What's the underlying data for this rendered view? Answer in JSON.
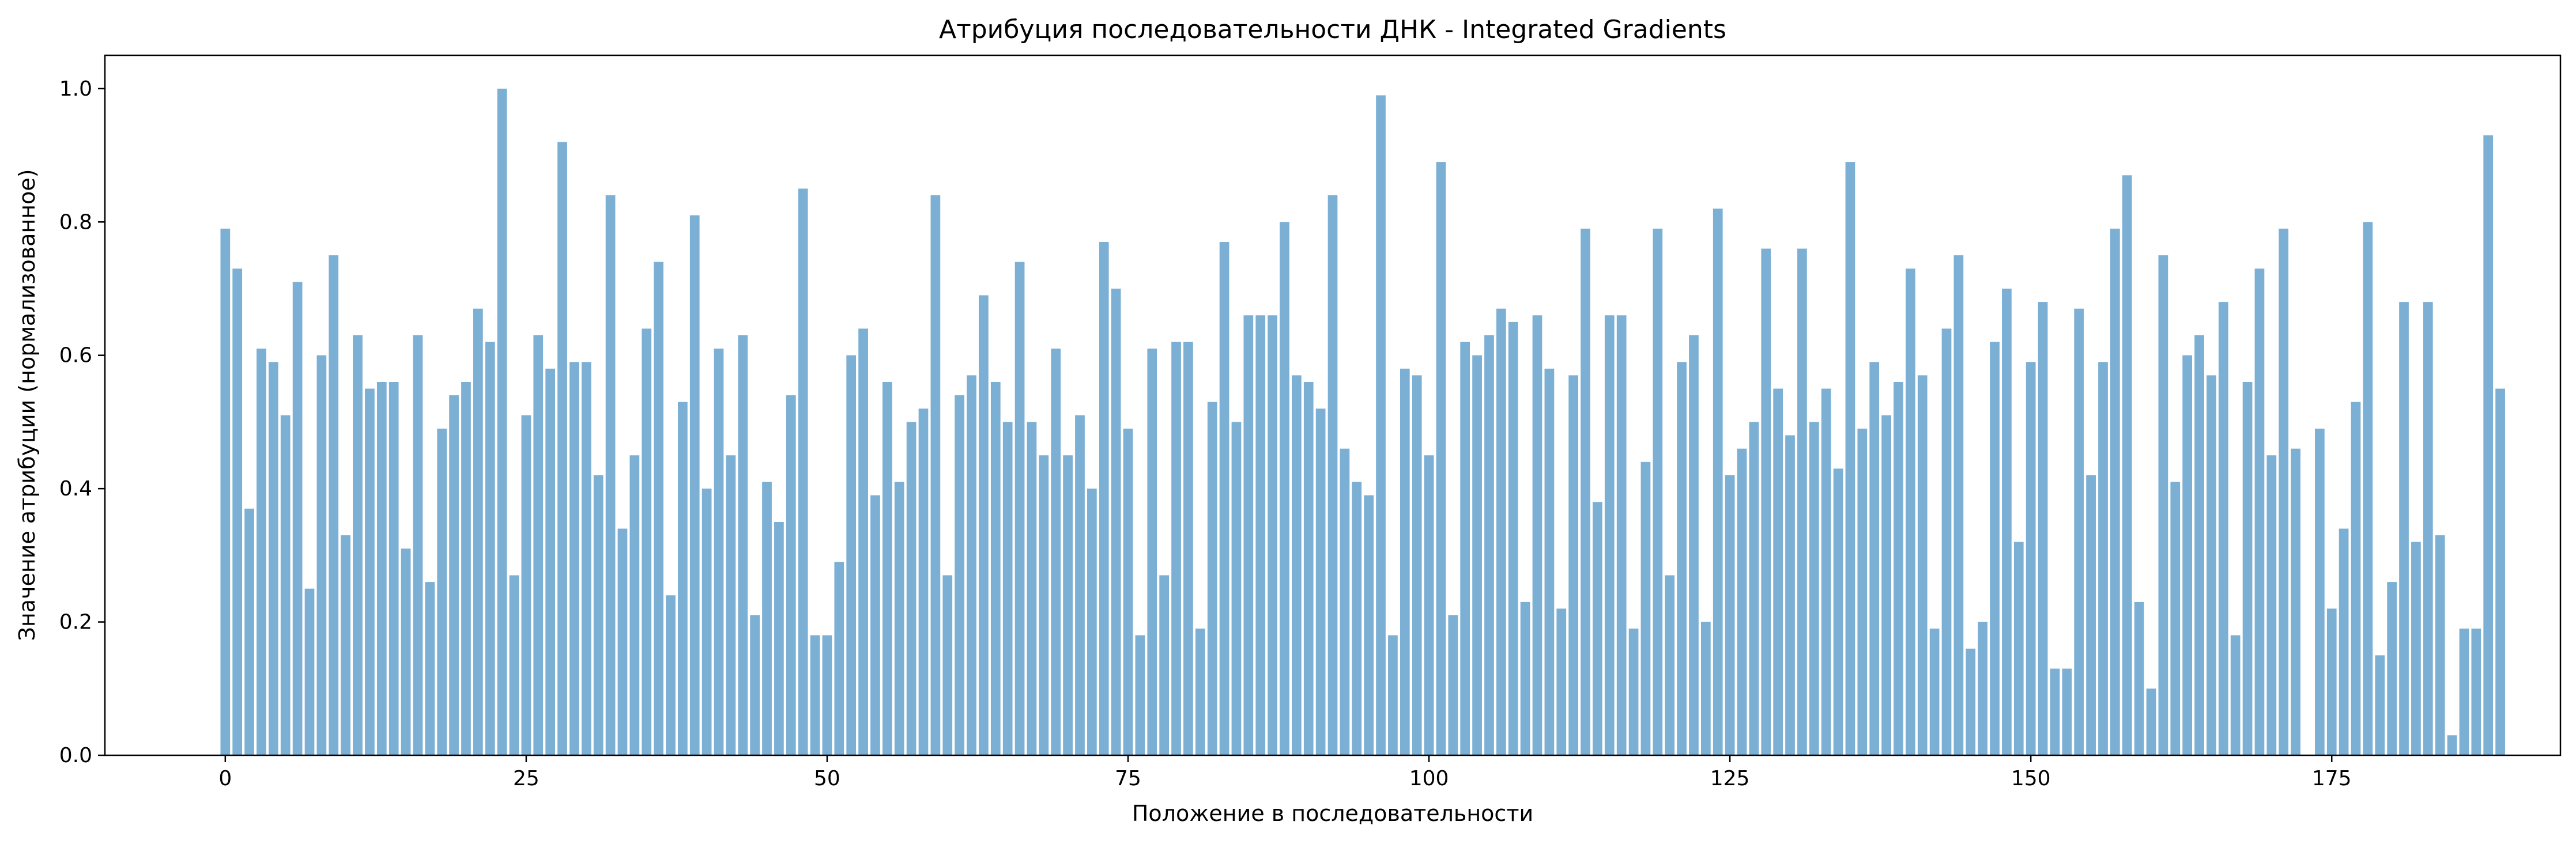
{
  "chart_data": {
    "type": "bar",
    "title": "Атрибуция последовательности ДНК - Integrated Gradients",
    "xlabel": "Положение в последовательности",
    "ylabel": "Значение атрибуции (нормализованное)",
    "xlim": [
      -10,
      194
    ],
    "ylim": [
      0,
      1.05
    ],
    "xticks": [
      0,
      25,
      50,
      75,
      100,
      125,
      150,
      175
    ],
    "yticks": [
      0.0,
      0.2,
      0.4,
      0.6,
      0.8,
      1.0
    ],
    "x": [
      0,
      1,
      2,
      3,
      4,
      5,
      6,
      7,
      8,
      9,
      10,
      11,
      12,
      13,
      14,
      15,
      16,
      17,
      18,
      19,
      20,
      21,
      22,
      23,
      24,
      25,
      26,
      27,
      28,
      29,
      30,
      31,
      32,
      33,
      34,
      35,
      36,
      37,
      38,
      39,
      40,
      41,
      42,
      43,
      44,
      45,
      46,
      47,
      48,
      49,
      50,
      51,
      52,
      53,
      54,
      55,
      56,
      57,
      58,
      59,
      60,
      61,
      62,
      63,
      64,
      65,
      66,
      67,
      68,
      69,
      70,
      71,
      72,
      73,
      74,
      75,
      76,
      77,
      78,
      79,
      80,
      81,
      82,
      83,
      84,
      85,
      86,
      87,
      88,
      89,
      90,
      91,
      92,
      93,
      94,
      95,
      96,
      97,
      98,
      99,
      100,
      101,
      102,
      103,
      104,
      105,
      106,
      107,
      108,
      109,
      110,
      111,
      112,
      113,
      114,
      115,
      116,
      117,
      118,
      119,
      120,
      121,
      122,
      123,
      124,
      125,
      126,
      127,
      128,
      129,
      130,
      131,
      132,
      133,
      134,
      135,
      136,
      137,
      138,
      139,
      140,
      141,
      142,
      143,
      144,
      145,
      146,
      147,
      148,
      149,
      150,
      151,
      152,
      153,
      154,
      155,
      156,
      157,
      158,
      159,
      160,
      161,
      162,
      163,
      164,
      165,
      166,
      167,
      168,
      169,
      170,
      171,
      172,
      173,
      174,
      175,
      176,
      177,
      178,
      179,
      180,
      181,
      182,
      183,
      184,
      185,
      186,
      187,
      188,
      189
    ],
    "values": [
      0.79,
      0.73,
      0.37,
      0.61,
      0.59,
      0.51,
      0.71,
      0.25,
      0.6,
      0.75,
      0.33,
      0.63,
      0.55,
      0.56,
      0.56,
      0.31,
      0.63,
      0.26,
      0.49,
      0.54,
      0.56,
      0.67,
      0.62,
      1.0,
      0.27,
      0.51,
      0.63,
      0.58,
      0.92,
      0.59,
      0.59,
      0.42,
      0.84,
      0.34,
      0.45,
      0.64,
      0.74,
      0.24,
      0.53,
      0.81,
      0.4,
      0.61,
      0.45,
      0.63,
      0.21,
      0.41,
      0.35,
      0.54,
      0.85,
      0.18,
      0.18,
      0.29,
      0.6,
      0.64,
      0.39,
      0.56,
      0.41,
      0.5,
      0.52,
      0.84,
      0.27,
      0.54,
      0.57,
      0.69,
      0.56,
      0.5,
      0.74,
      0.5,
      0.45,
      0.61,
      0.45,
      0.51,
      0.4,
      0.77,
      0.7,
      0.49,
      0.18,
      0.61,
      0.27,
      0.62,
      0.62,
      0.19,
      0.53,
      0.77,
      0.5,
      0.66,
      0.66,
      0.66,
      0.8,
      0.57,
      0.56,
      0.52,
      0.84,
      0.46,
      0.41,
      0.39,
      0.99,
      0.18,
      0.58,
      0.57,
      0.45,
      0.89,
      0.21,
      0.62,
      0.6,
      0.63,
      0.67,
      0.65,
      0.23,
      0.66,
      0.58,
      0.22,
      0.57,
      0.79,
      0.38,
      0.66,
      0.66,
      0.19,
      0.44,
      0.79,
      0.27,
      0.59,
      0.63,
      0.2,
      0.82,
      0.42,
      0.46,
      0.5,
      0.76,
      0.55,
      0.48,
      0.76,
      0.5,
      0.55,
      0.43,
      0.89,
      0.49,
      0.59,
      0.51,
      0.56,
      0.73,
      0.57,
      0.19,
      0.64,
      0.75,
      0.16,
      0.2,
      0.62,
      0.7,
      0.32,
      0.59,
      0.68,
      0.13,
      0.13,
      0.67,
      0.42,
      0.59,
      0.79,
      0.87,
      0.23,
      0.1,
      0.75,
      0.41,
      0.6,
      0.63,
      0.57,
      0.68,
      0.18,
      0.56,
      0.73,
      0.45,
      0.79,
      0.46,
      0.0,
      0.49,
      0.22,
      0.34,
      0.53,
      0.8,
      0.15,
      0.26,
      0.68,
      0.32,
      0.68,
      0.33,
      0.03,
      0.19,
      0.19,
      0.93,
      0.55
    ],
    "bar_color": "#7bafd4",
    "grid": false,
    "legend": "none"
  }
}
